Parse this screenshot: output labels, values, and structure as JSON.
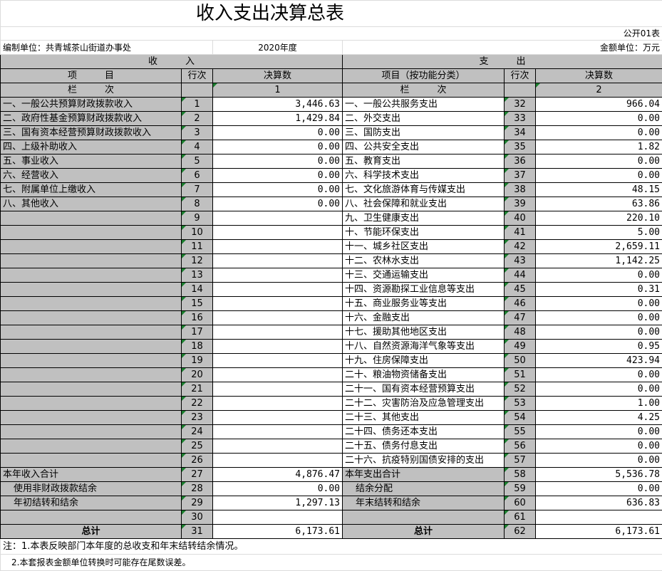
{
  "title": "收入支出决算总表",
  "form_code": "公开01表",
  "unit": "编制单位：共青城茶山街道办事处",
  "year": "2020年度",
  "currency": "金额单位：万元",
  "income_header": "收　　　入",
  "expense_header": "支　　　出",
  "col_item": "项　　　目",
  "col_item_func": "项目（按功能分类）",
  "col_row": "行次",
  "col_amount": "决算数",
  "col_label": "栏　　　次",
  "col_num_income": "1",
  "col_num_expense": "2",
  "rows": [
    {
      "il": "一、一般公共预算财政拨款收入",
      "in": "1",
      "iv": "3,446.63",
      "el": "一、一般公共服务支出",
      "en": "32",
      "ev": "966.04"
    },
    {
      "il": "二、政府性基金预算财政拨款收入",
      "in": "2",
      "iv": "1,429.84",
      "el": "二、外交支出",
      "en": "33",
      "ev": "0.00"
    },
    {
      "il": "三、国有资本经营预算财政拨款收入",
      "in": "3",
      "iv": "0.00",
      "el": "三、国防支出",
      "en": "34",
      "ev": "0.00"
    },
    {
      "il": "四、上级补助收入",
      "in": "4",
      "iv": "0.00",
      "el": "四、公共安全支出",
      "en": "35",
      "ev": "1.82"
    },
    {
      "il": "五、事业收入",
      "in": "5",
      "iv": "0.00",
      "el": "五、教育支出",
      "en": "36",
      "ev": "0.00"
    },
    {
      "il": "六、经营收入",
      "in": "6",
      "iv": "0.00",
      "el": "六、科学技术支出",
      "en": "37",
      "ev": "0.00"
    },
    {
      "il": "七、附属单位上缴收入",
      "in": "7",
      "iv": "0.00",
      "el": "七、文化旅游体育与传媒支出",
      "en": "38",
      "ev": "48.15"
    },
    {
      "il": "八、其他收入",
      "in": "8",
      "iv": "0.00",
      "el": "八、社会保障和就业支出",
      "en": "39",
      "ev": "63.86"
    },
    {
      "il": "",
      "in": "9",
      "iv": "",
      "el": "九、卫生健康支出",
      "en": "40",
      "ev": "220.10"
    },
    {
      "il": "",
      "in": "10",
      "iv": "",
      "el": "十、节能环保支出",
      "en": "41",
      "ev": "5.00"
    },
    {
      "il": "",
      "in": "11",
      "iv": "",
      "el": "十一、城乡社区支出",
      "en": "42",
      "ev": "2,659.11"
    },
    {
      "il": "",
      "in": "12",
      "iv": "",
      "el": "十二、农林水支出",
      "en": "43",
      "ev": "1,142.25"
    },
    {
      "il": "",
      "in": "13",
      "iv": "",
      "el": "十三、交通运输支出",
      "en": "44",
      "ev": "0.00"
    },
    {
      "il": "",
      "in": "14",
      "iv": "",
      "el": "十四、资源勘探工业信息等支出",
      "en": "45",
      "ev": "0.31"
    },
    {
      "il": "",
      "in": "15",
      "iv": "",
      "el": "十五、商业服务业等支出",
      "en": "46",
      "ev": "0.00"
    },
    {
      "il": "",
      "in": "16",
      "iv": "",
      "el": "十六、金融支出",
      "en": "47",
      "ev": "0.00"
    },
    {
      "il": "",
      "in": "17",
      "iv": "",
      "el": "十七、援助其他地区支出",
      "en": "48",
      "ev": "0.00"
    },
    {
      "il": "",
      "in": "18",
      "iv": "",
      "el": "十八、自然资源海洋气象等支出",
      "en": "49",
      "ev": "0.95"
    },
    {
      "il": "",
      "in": "19",
      "iv": "",
      "el": "十九、住房保障支出",
      "en": "50",
      "ev": "423.94"
    },
    {
      "il": "",
      "in": "20",
      "iv": "",
      "el": "二十、粮油物资储备支出",
      "en": "51",
      "ev": "0.00"
    },
    {
      "il": "",
      "in": "21",
      "iv": "",
      "el": "二十一、国有资本经营预算支出",
      "en": "52",
      "ev": "0.00"
    },
    {
      "il": "",
      "in": "22",
      "iv": "",
      "el": "二十二、灾害防治及应急管理支出",
      "en": "53",
      "ev": "1.00"
    },
    {
      "il": "",
      "in": "23",
      "iv": "",
      "el": "二十三、其他支出",
      "en": "54",
      "ev": "4.25"
    },
    {
      "il": "",
      "in": "24",
      "iv": "",
      "el": "二十四、债务还本支出",
      "en": "55",
      "ev": "0.00"
    },
    {
      "il": "",
      "in": "25",
      "iv": "",
      "el": "二十五、债务付息支出",
      "en": "56",
      "ev": "0.00"
    },
    {
      "il": "",
      "in": "26",
      "iv": "",
      "el": "二十六、抗疫特别国债安排的支出",
      "en": "57",
      "ev": "0.00"
    },
    {
      "il": "本年收入合计",
      "in": "27",
      "iv": "4,876.47",
      "el": "本年支出合计",
      "en": "58",
      "ev": "5,536.78",
      "sum": true
    },
    {
      "il": "使用非财政拨款结余",
      "in": "28",
      "iv": "0.00",
      "el": "结余分配",
      "en": "59",
      "ev": "0.00",
      "sum": true,
      "ind": true
    },
    {
      "il": "年初结转和结余",
      "in": "29",
      "iv": "1,297.13",
      "el": "年末结转和结余",
      "en": "60",
      "ev": "636.83",
      "sum": true,
      "ind": true
    },
    {
      "il": "",
      "in": "30",
      "iv": "",
      "el": "",
      "en": "61",
      "ev": "",
      "sum": true
    },
    {
      "il": "总计",
      "in": "31",
      "iv": "6,173.61",
      "el": "总计",
      "en": "62",
      "ev": "6,173.61",
      "sum": true,
      "total": true
    }
  ],
  "notes": [
    "注：1.本表反映部门本年度的总收支和年末结转结余情况。",
    "　2.本套报表金额单位转换时可能存在尾数误差。"
  ],
  "colors": {
    "header_gray": "#c0c0c0",
    "marker_green": "#1a7f2e"
  }
}
